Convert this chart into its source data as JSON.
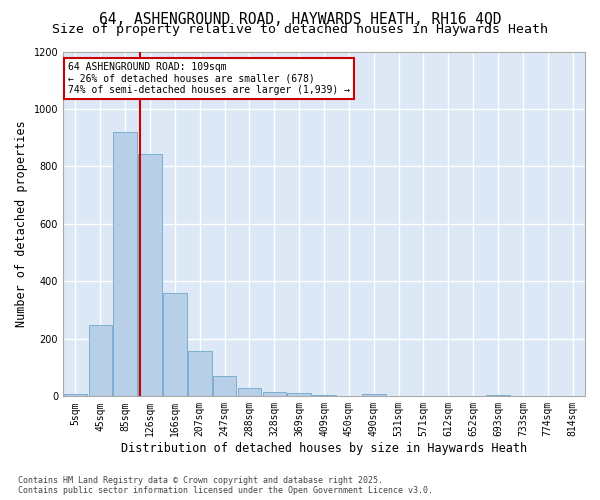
{
  "title_line1": "64, ASHENGROUND ROAD, HAYWARDS HEATH, RH16 4QD",
  "title_line2": "Size of property relative to detached houses in Haywards Heath",
  "xlabel": "Distribution of detached houses by size in Haywards Heath",
  "ylabel": "Number of detached properties",
  "bar_color": "#b8cfe8",
  "bar_edge_color": "#7aaed0",
  "background_color": "#dce8f5",
  "grid_color": "#ffffff",
  "annotation_box_color": "#cc0000",
  "annotation_text": "64 ASHENGROUND ROAD: 109sqm\n← 26% of detached houses are smaller (678)\n74% of semi-detached houses are larger (1,939) →",
  "vline_x_bin": 3,
  "vline_color": "#cc0000",
  "bin_labels": [
    "5sqm",
    "45sqm",
    "85sqm",
    "126sqm",
    "166sqm",
    "207sqm",
    "247sqm",
    "288sqm",
    "328sqm",
    "369sqm",
    "409sqm",
    "450sqm",
    "490sqm",
    "531sqm",
    "571sqm",
    "612sqm",
    "652sqm",
    "693sqm",
    "733sqm",
    "774sqm",
    "814sqm"
  ],
  "bar_heights": [
    8,
    248,
    920,
    843,
    360,
    157,
    70,
    28,
    15,
    10,
    5,
    0,
    8,
    0,
    0,
    0,
    0,
    5,
    0,
    0,
    0
  ],
  "ylim": [
    0,
    1200
  ],
  "yticks": [
    0,
    200,
    400,
    600,
    800,
    1000,
    1200
  ],
  "footer": "Contains HM Land Registry data © Crown copyright and database right 2025.\nContains public sector information licensed under the Open Government Licence v3.0.",
  "title_fontsize": 10.5,
  "subtitle_fontsize": 9.5,
  "tick_fontsize": 7,
  "label_fontsize": 8.5,
  "footer_fontsize": 6
}
